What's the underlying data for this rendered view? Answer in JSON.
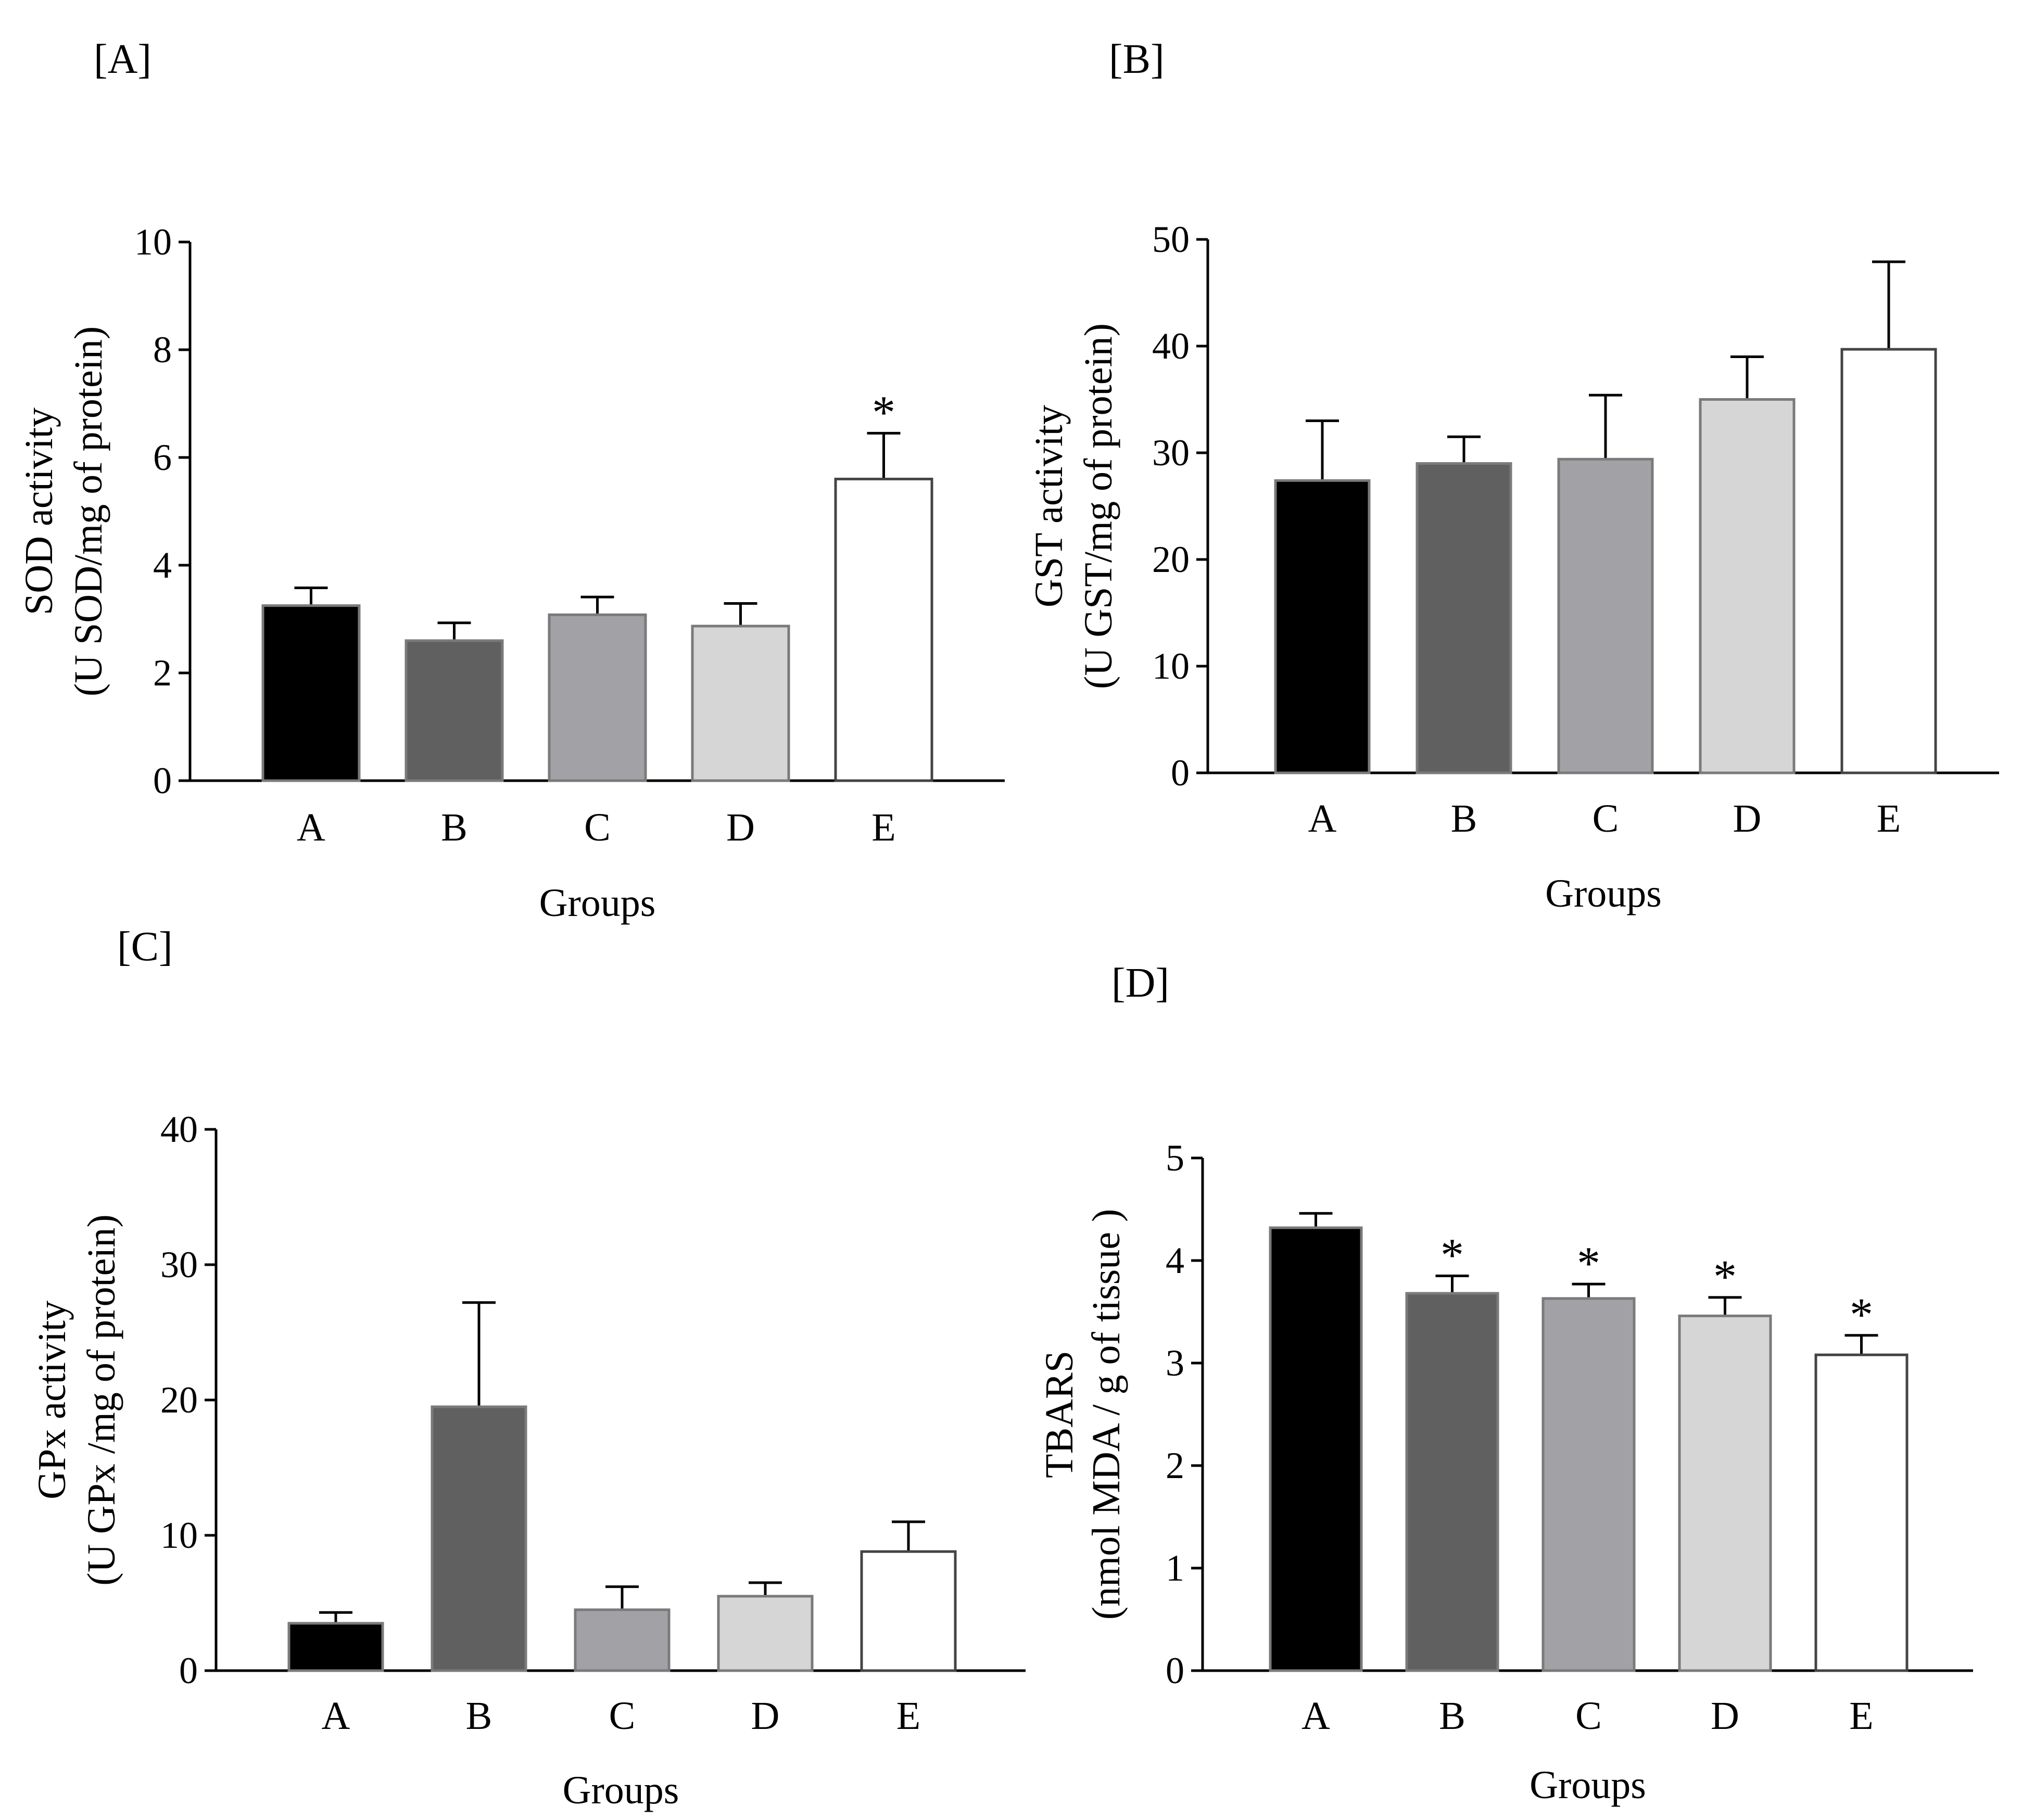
{
  "chart_data": [
    {
      "panel": "[A]",
      "type": "bar",
      "categories": [
        "A",
        "B",
        "C",
        "D",
        "E"
      ],
      "values": [
        3.25,
        2.6,
        3.08,
        2.87,
        5.6
      ],
      "errors": [
        0.33,
        0.33,
        0.33,
        0.42,
        0.85
      ],
      "significance": [
        "",
        "",
        "",
        "",
        "*"
      ],
      "colors": [
        "#000000",
        "#606060",
        "#a2a2a6",
        "#d6d6d6",
        "#ffffff"
      ],
      "xlabel": "Groups",
      "ylabel": [
        "SOD activity",
        "(U SOD/mg of protein)"
      ],
      "ylim": [
        0,
        10
      ],
      "yticks": [
        "0",
        "2",
        "4",
        "6",
        "8",
        "10"
      ]
    },
    {
      "panel": "[B]",
      "type": "bar",
      "categories": [
        "A",
        "B",
        "C",
        "D",
        "E"
      ],
      "values": [
        27.4,
        29.0,
        29.4,
        35.0,
        39.7
      ],
      "errors": [
        5.6,
        2.5,
        6.0,
        4.0,
        8.2
      ],
      "significance": [
        "",
        "",
        "",
        "",
        ""
      ],
      "colors": [
        "#000000",
        "#606060",
        "#a2a2a6",
        "#d6d6d6",
        "#ffffff"
      ],
      "xlabel": "Groups",
      "ylabel": [
        "GST activity",
        "(U GST/mg of protein)"
      ],
      "ylim": [
        0,
        50
      ],
      "yticks": [
        "0",
        "10",
        "20",
        "30",
        "40",
        "50"
      ]
    },
    {
      "panel": "[C]",
      "type": "bar",
      "categories": [
        "A",
        "B",
        "C",
        "D",
        "E"
      ],
      "values": [
        3.5,
        19.5,
        4.5,
        5.5,
        8.8
      ],
      "errors": [
        0.8,
        7.7,
        1.7,
        1.0,
        2.2
      ],
      "significance": [
        "",
        "",
        "",
        "",
        ""
      ],
      "colors": [
        "#000000",
        "#606060",
        "#a2a2a6",
        "#d6d6d6",
        "#ffffff"
      ],
      "xlabel": "Groups",
      "ylabel": [
        "GPx activity",
        "(U GPx /mg of protein)"
      ],
      "ylim": [
        0,
        40
      ],
      "yticks": [
        "0",
        "10",
        "20",
        "30",
        "40"
      ]
    },
    {
      "panel": "[D]",
      "type": "bar",
      "categories": [
        "A",
        "B",
        "C",
        "D",
        "E"
      ],
      "values": [
        4.32,
        3.68,
        3.63,
        3.46,
        3.08
      ],
      "errors": [
        0.14,
        0.17,
        0.14,
        0.18,
        0.19
      ],
      "significance": [
        "",
        "*",
        "*",
        "*",
        "*"
      ],
      "colors": [
        "#000000",
        "#606060",
        "#a2a2a6",
        "#d6d6d6",
        "#ffffff"
      ],
      "xlabel": "Groups",
      "ylabel": [
        "TBARS",
        "(nmol MDA / g of tissue )"
      ],
      "ylim": [
        0,
        5
      ],
      "yticks": [
        "0",
        "1",
        "2",
        "3",
        "4",
        "5"
      ]
    }
  ]
}
